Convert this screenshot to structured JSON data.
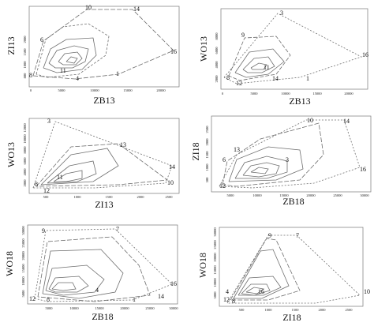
{
  "panels": [
    {
      "id": "zb13-zi13",
      "ylabel": "ZI13",
      "xlabel": "ZB13",
      "x_ticks": [
        "0",
        "5000",
        "10000",
        "15000",
        "20000"
      ],
      "y_ticks": [
        "800",
        "1000",
        "1500",
        "2000"
      ],
      "point_labels": [
        "10",
        "14",
        "6",
        "16",
        "11",
        "1",
        "4",
        "8"
      ]
    },
    {
      "id": "zb13-wo13",
      "ylabel": "WO13",
      "xlabel": "ZB13",
      "x_ticks": [
        "0",
        "5000",
        "10000",
        "15000",
        "20000"
      ],
      "y_ticks": [
        "2000",
        "4000",
        "6000",
        "8000"
      ],
      "point_labels": [
        "3",
        "9",
        "16",
        "11",
        "14",
        "1",
        "8",
        "12"
      ]
    },
    {
      "id": "zi13-wo13",
      "ylabel": "WO13",
      "xlabel": "ZI13",
      "x_ticks": [
        "500",
        "1000",
        "1500",
        "2000",
        "2500"
      ],
      "y_ticks": [
        "2000",
        "4000",
        "6000",
        "8000",
        "10000",
        "12000"
      ],
      "point_labels": [
        "3",
        "13",
        "11",
        "14",
        "10",
        "8",
        "12"
      ]
    },
    {
      "id": "zb18-zi18",
      "ylabel": "ZI18",
      "xlabel": "ZB18",
      "x_ticks": [
        "5000",
        "10000",
        "15000",
        "20000",
        "25000",
        "30000"
      ],
      "y_ticks": [
        "500",
        "1000",
        "1500",
        "2000",
        "2500"
      ],
      "point_labels": [
        "10",
        "14",
        "13",
        "6",
        "3",
        "16",
        "12"
      ]
    },
    {
      "id": "zb18-wo18",
      "ylabel": "WO18",
      "xlabel": "ZB18",
      "x_ticks": [
        "5000",
        "10000",
        "15000",
        "20000",
        "25000",
        "30000"
      ],
      "y_ticks": [
        "5000",
        "10000",
        "15000",
        "20000",
        "25000",
        "30000"
      ],
      "point_labels": [
        "9",
        "7",
        "16",
        "4",
        "14",
        "1",
        "12",
        "8"
      ]
    },
    {
      "id": "zi18-wo18",
      "ylabel": "WO18",
      "xlabel": "ZI18",
      "x_ticks": [
        "500",
        "1000",
        "1500",
        "2000",
        "2500"
      ],
      "y_ticks": [
        "5000",
        "10000",
        "15000",
        "20000",
        "25000",
        "30000"
      ],
      "point_labels": [
        "9",
        "7",
        "10",
        "16",
        "4",
        "12",
        "8"
      ]
    }
  ],
  "chart_data": [
    {
      "type": "scatter",
      "xlabel": "ZB13",
      "ylabel": "ZI13",
      "grid": false,
      "labels": [
        "10",
        "14",
        "6",
        "16",
        "11",
        "1",
        "4",
        "8"
      ]
    },
    {
      "type": "scatter",
      "xlabel": "ZB13",
      "ylabel": "WO13",
      "grid": false,
      "labels": [
        "3",
        "9",
        "16",
        "11",
        "14",
        "1",
        "8",
        "12"
      ]
    },
    {
      "type": "scatter",
      "xlabel": "ZI13",
      "ylabel": "WO13",
      "grid": false,
      "labels": [
        "3",
        "13",
        "11",
        "14",
        "10",
        "8",
        "12"
      ]
    },
    {
      "type": "scatter",
      "xlabel": "ZB18",
      "ylabel": "ZI18",
      "grid": false,
      "labels": [
        "10",
        "14",
        "13",
        "6",
        "3",
        "16",
        "12"
      ]
    },
    {
      "type": "scatter",
      "xlabel": "ZB18",
      "ylabel": "WO18",
      "grid": false,
      "labels": [
        "9",
        "7",
        "16",
        "4",
        "14",
        "1",
        "12",
        "8"
      ]
    },
    {
      "type": "scatter",
      "xlabel": "ZI18",
      "ylabel": "WO18",
      "grid": false,
      "labels": [
        "9",
        "7",
        "10",
        "16",
        "4",
        "12",
        "8"
      ]
    }
  ],
  "colors": {
    "line": "#6e6e6e",
    "text": "#111111",
    "axis": "#666666"
  }
}
